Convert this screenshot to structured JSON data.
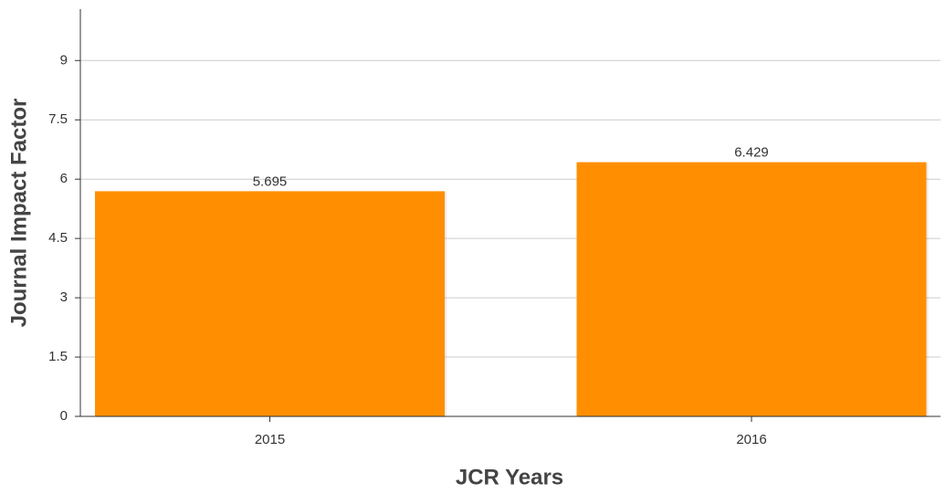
{
  "chart_data": {
    "type": "bar",
    "x_label": "JCR Years",
    "y_label": "Journal Impact Factor",
    "categories": [
      "2015",
      "2016"
    ],
    "values": [
      5.695,
      6.429
    ],
    "color": "#ff8f00",
    "ylim": [
      0,
      10.3
    ],
    "yticks": [
      0,
      1.5,
      3,
      4.5,
      6,
      7.5,
      9
    ],
    "grid": true
  }
}
